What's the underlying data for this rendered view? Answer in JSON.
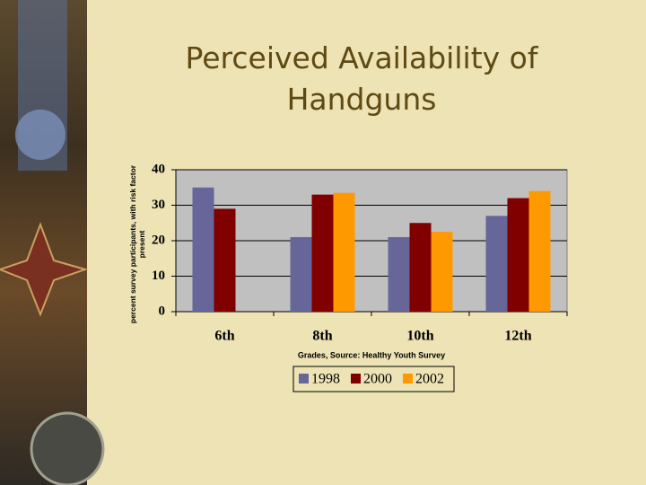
{
  "chart_data": {
    "type": "bar",
    "title": "Perceived Availability of Handguns",
    "y_label": "percent survey participants, with risk factor present",
    "x_label": "Grades, Source: Healthy Youth Survey",
    "categories": [
      "6th",
      "8th",
      "10th",
      "12th"
    ],
    "series": [
      {
        "name": "1998",
        "color": "#666699",
        "values": [
          35,
          21,
          21,
          27
        ]
      },
      {
        "name": "2000",
        "color": "#800000",
        "values": [
          29,
          33,
          25,
          32
        ]
      },
      {
        "name": "2002",
        "color": "#ff9900",
        "values": [
          null,
          33.5,
          22.5,
          34
        ]
      }
    ],
    "ylim": [
      0,
      40
    ],
    "yticks": [
      0,
      10,
      20,
      30,
      40
    ],
    "grid": true,
    "legend": "bottom"
  }
}
